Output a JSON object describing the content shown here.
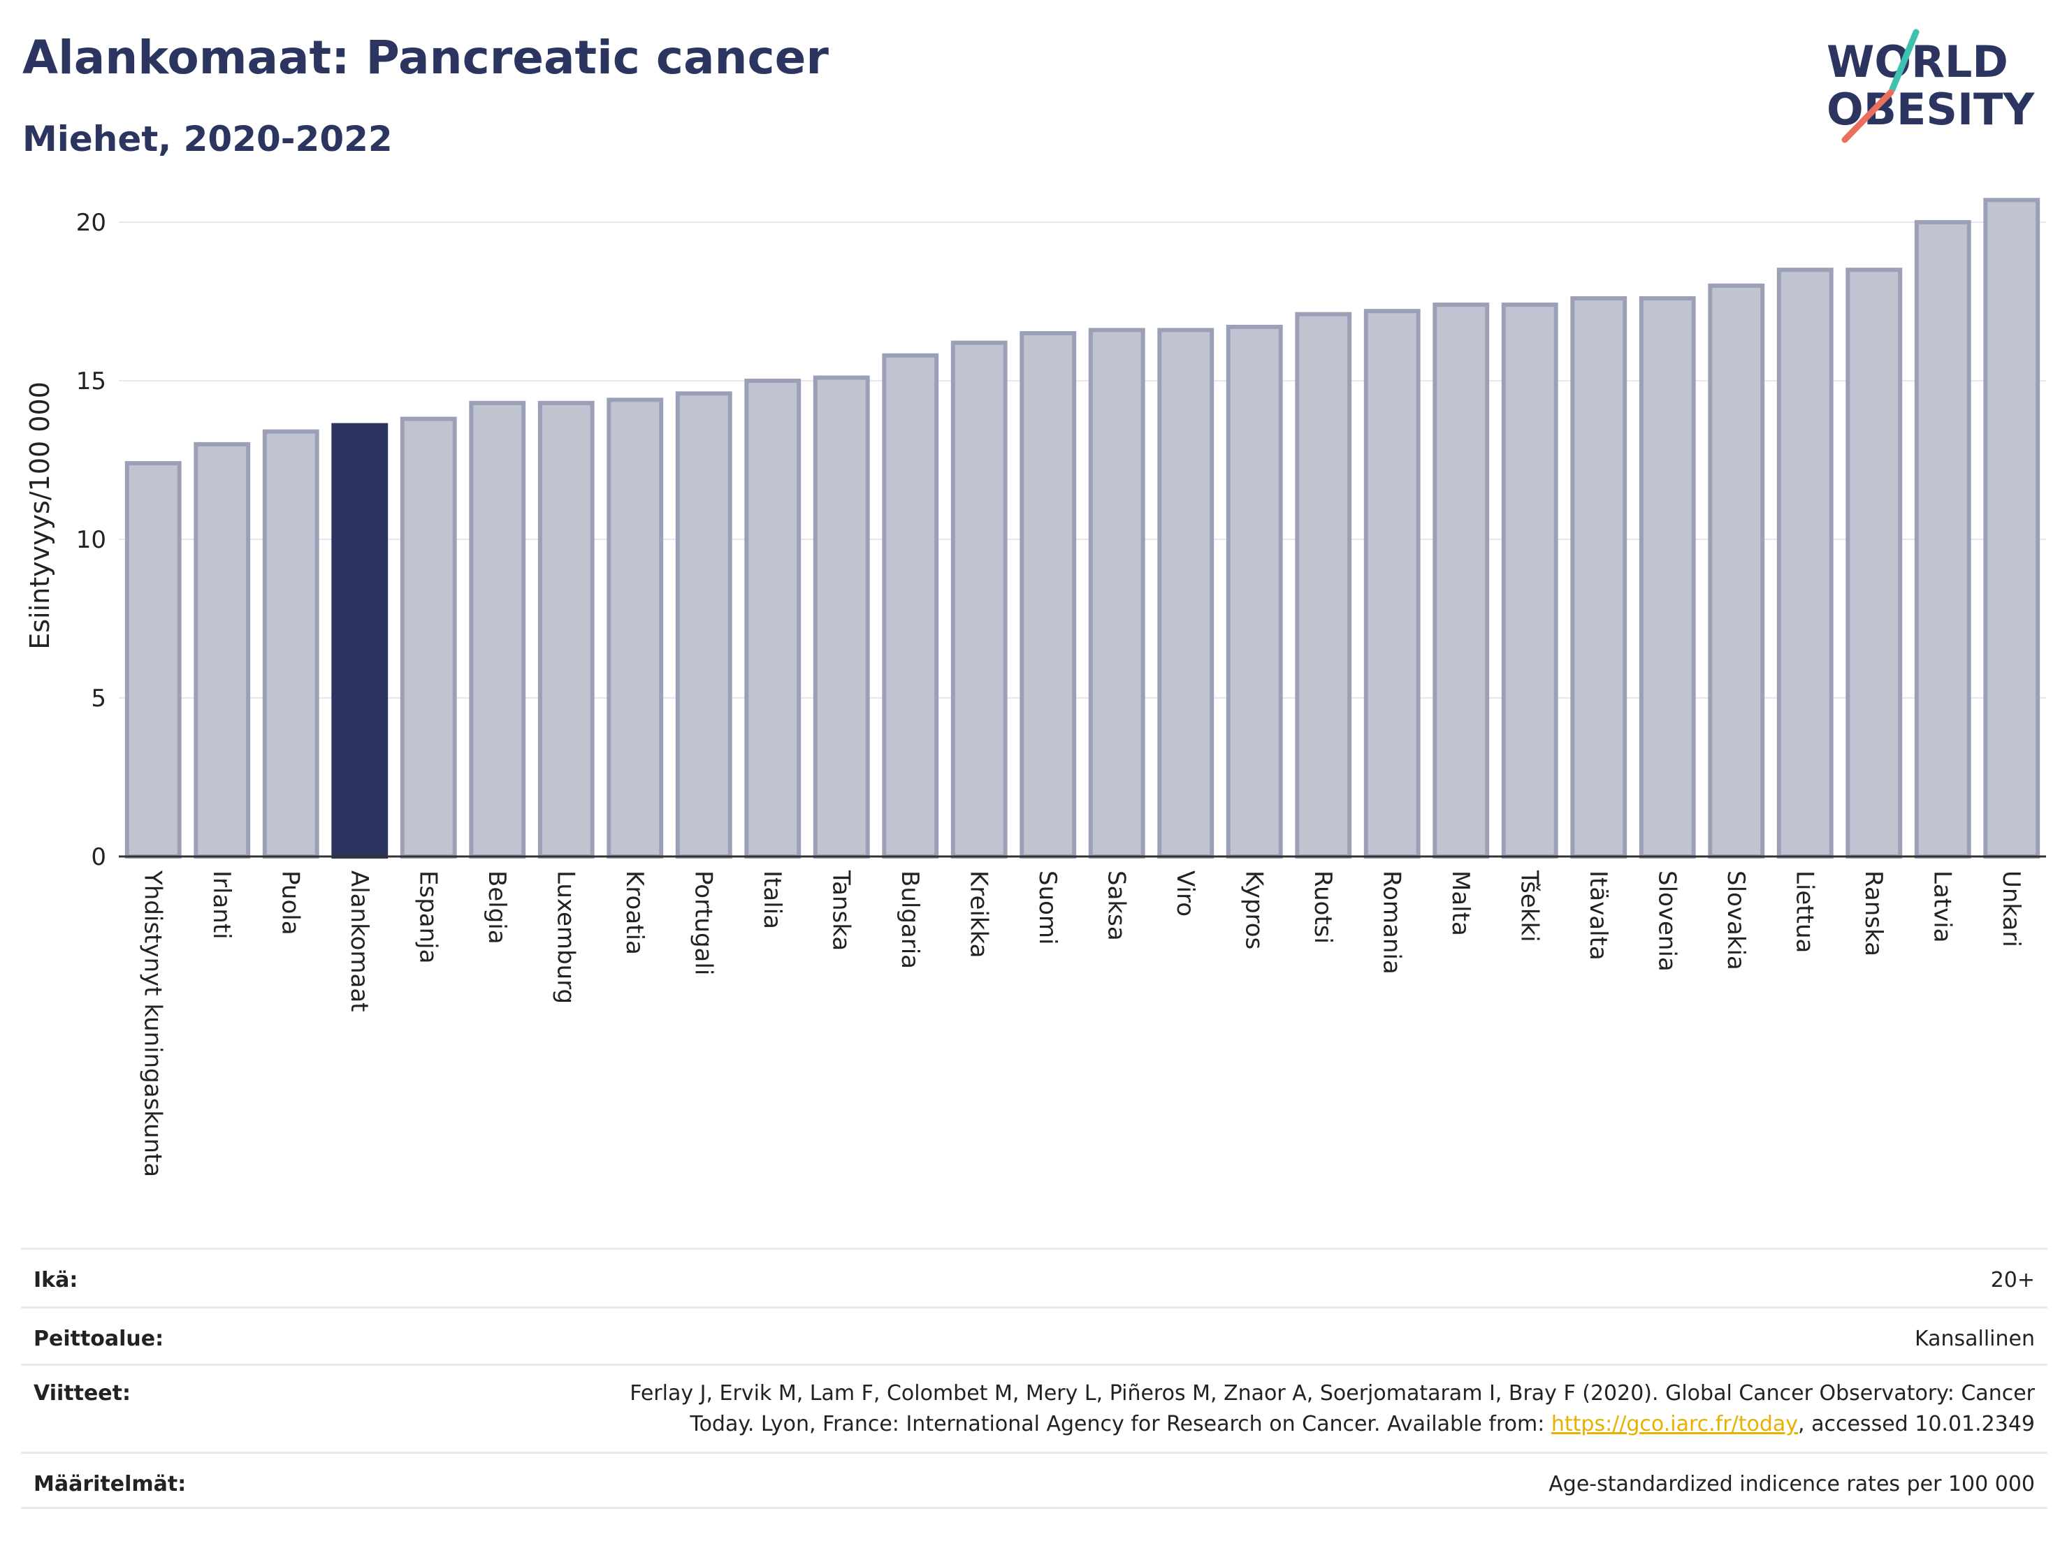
{
  "header": {
    "title": "Alankomaat: Pancreatic cancer",
    "subtitle": "Miehet, 2020-2022"
  },
  "logo": {
    "line1": "WORLD",
    "line2": "OBESITY"
  },
  "colors": {
    "highlight": "#2b3560",
    "bar_fill": "#c0c3d0",
    "bar_stroke": "#9ba0b6",
    "grid": "#e6e6ec",
    "logo_teal": "#3fc1b0",
    "logo_coral": "#e8705c",
    "link": "#e8b100"
  },
  "chart_data": {
    "type": "bar",
    "ylabel": "Esiintyvyys/100 000",
    "ylim": [
      0,
      21.5
    ],
    "yticks": [
      0,
      5,
      10,
      15,
      20
    ],
    "grid": true,
    "highlight_category": "Alankomaat",
    "categories": [
      "Yhdistynyt kuningaskunta",
      "Irlanti",
      "Puola",
      "Alankomaat",
      "Espanja",
      "Belgia",
      "Luxemburg",
      "Kroatia",
      "Portugali",
      "Italia",
      "Tanska",
      "Bulgaria",
      "Kreikka",
      "Suomi",
      "Saksa",
      "Viro",
      "Kypros",
      "Ruotsi",
      "Romania",
      "Malta",
      "Tšekki",
      "Itävalta",
      "Slovenia",
      "Slovakia",
      "Liettua",
      "Ranska",
      "Latvia",
      "Unkari"
    ],
    "values": [
      12.4,
      13.0,
      13.4,
      13.6,
      13.8,
      14.3,
      14.3,
      14.4,
      14.6,
      15.0,
      15.1,
      15.8,
      16.2,
      16.5,
      16.6,
      16.6,
      16.7,
      17.1,
      17.2,
      17.4,
      17.4,
      17.6,
      17.6,
      18.0,
      18.5,
      18.5,
      20.0,
      20.7
    ]
  },
  "footer": {
    "age_label": "Ikä:",
    "age_value": "20+",
    "coverage_label": "Peittoalue:",
    "coverage_value": "Kansallinen",
    "refs_label": "Viitteet:",
    "refs_line1": "Ferlay J, Ervik M, Lam F, Colombet M, Mery L, Piñeros M, Znaor A, Soerjomataram I, Bray F (2020). Global Cancer Observatory: Cancer",
    "refs_line2_pre": "Today. Lyon, France: International Agency for Research on Cancer. Available from: ",
    "refs_link": "https://gco.iarc.fr/today",
    "refs_line2_post": ", accessed 10.01.2349",
    "defs_label": "Määritelmät:",
    "defs_value": "Age-standardized indicence rates per 100 000"
  }
}
